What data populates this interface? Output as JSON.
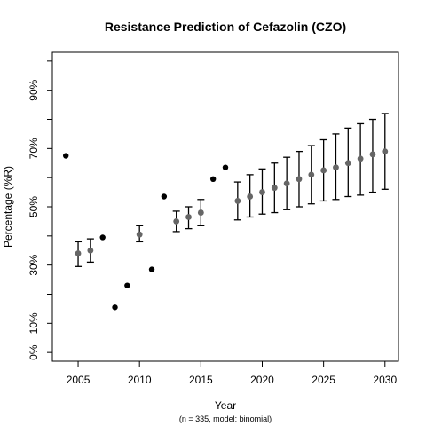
{
  "chart_data": {
    "type": "scatter",
    "title": "Resistance Prediction of Cefazolin (CZO)",
    "xlabel": "Year",
    "ylabel": "Percentage (%R)",
    "subtitle": "(n = 335, model: binomial)",
    "xlim": [
      2002.9,
      2031.1
    ],
    "ylim": [
      -3,
      103
    ],
    "x_ticks": [
      {
        "value": 2005,
        "label": "2005"
      },
      {
        "value": 2010,
        "label": "2010"
      },
      {
        "value": 2015,
        "label": "2015"
      },
      {
        "value": 2020,
        "label": "2020"
      },
      {
        "value": 2025,
        "label": "2025"
      },
      {
        "value": 2030,
        "label": "2030"
      }
    ],
    "y_ticks": [
      {
        "value": 0,
        "label": "0%"
      },
      {
        "value": 10,
        "label": "10%"
      },
      {
        "value": 20,
        "label": ""
      },
      {
        "value": 30,
        "label": "30%"
      },
      {
        "value": 40,
        "label": ""
      },
      {
        "value": 50,
        "label": "50%"
      },
      {
        "value": 60,
        "label": ""
      },
      {
        "value": 70,
        "label": "70%"
      },
      {
        "value": 80,
        "label": ""
      },
      {
        "value": 90,
        "label": "90%"
      },
      {
        "value": 100,
        "label": ""
      }
    ],
    "colors": {
      "observed": "#000000",
      "predicted": "#666666",
      "error_bar": "#000000"
    },
    "series": [
      {
        "kind": "observed",
        "points": [
          {
            "x": 2004,
            "y": 67.5
          },
          {
            "x": 2007,
            "y": 39.5
          },
          {
            "x": 2008,
            "y": 15.5
          },
          {
            "x": 2009,
            "y": 23
          },
          {
            "x": 2011,
            "y": 28.5
          },
          {
            "x": 2012,
            "y": 53.5
          },
          {
            "x": 2016,
            "y": 59.5
          },
          {
            "x": 2017,
            "y": 63.5
          }
        ]
      },
      {
        "kind": "predicted",
        "points": [
          {
            "x": 2005,
            "y": 34,
            "lower": 29.5,
            "upper": 38
          },
          {
            "x": 2006,
            "y": 35,
            "lower": 31,
            "upper": 39
          },
          {
            "x": 2010,
            "y": 40.5,
            "lower": 38,
            "upper": 43.5
          },
          {
            "x": 2013,
            "y": 45,
            "lower": 41.5,
            "upper": 48.5
          },
          {
            "x": 2014,
            "y": 46.5,
            "lower": 42.5,
            "upper": 50
          },
          {
            "x": 2015,
            "y": 48,
            "lower": 43.5,
            "upper": 52.5
          },
          {
            "x": 2018,
            "y": 52,
            "lower": 45.5,
            "upper": 58.5
          },
          {
            "x": 2019,
            "y": 53.5,
            "lower": 46.5,
            "upper": 61
          },
          {
            "x": 2020,
            "y": 55,
            "lower": 47.5,
            "upper": 63
          },
          {
            "x": 2021,
            "y": 56.5,
            "lower": 48,
            "upper": 65
          },
          {
            "x": 2022,
            "y": 58,
            "lower": 49,
            "upper": 67
          },
          {
            "x": 2023,
            "y": 59.5,
            "lower": 50,
            "upper": 69
          },
          {
            "x": 2024,
            "y": 61,
            "lower": 51,
            "upper": 71
          },
          {
            "x": 2025,
            "y": 62.5,
            "lower": 52,
            "upper": 73
          },
          {
            "x": 2026,
            "y": 63.5,
            "lower": 52.5,
            "upper": 75
          },
          {
            "x": 2027,
            "y": 65,
            "lower": 53.5,
            "upper": 77
          },
          {
            "x": 2028,
            "y": 66.5,
            "lower": 54,
            "upper": 78.5
          },
          {
            "x": 2029,
            "y": 68,
            "lower": 55,
            "upper": 80
          },
          {
            "x": 2030,
            "y": 69,
            "lower": 56,
            "upper": 82
          }
        ]
      }
    ]
  }
}
